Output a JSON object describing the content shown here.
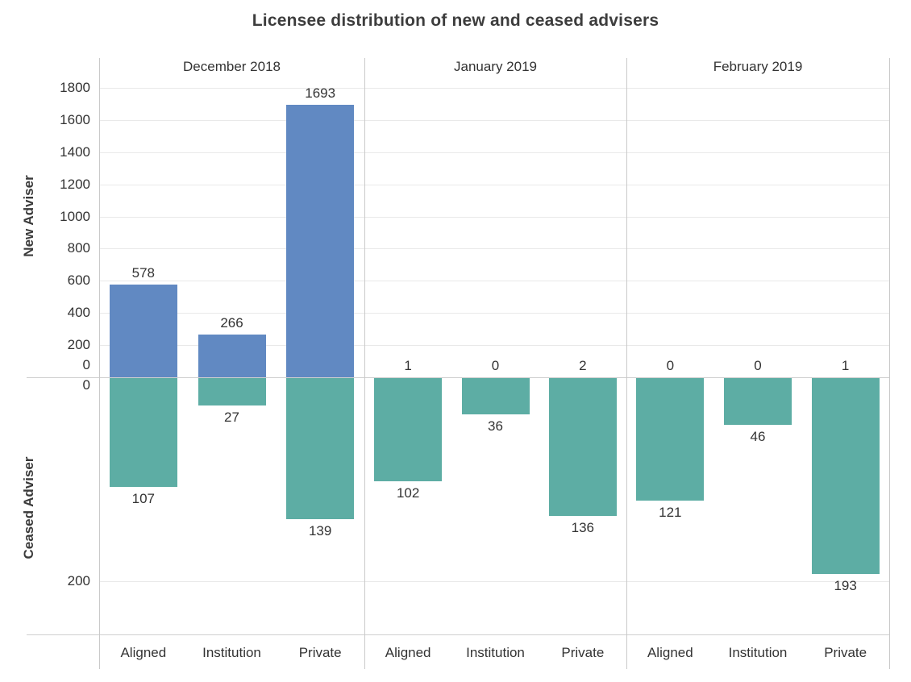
{
  "chart_data": {
    "type": "bar",
    "title": "Licensee distribution of new and ceased advisers",
    "categories": [
      "Aligned",
      "Institution",
      "Private"
    ],
    "facets": [
      {
        "label": "December 2018",
        "new": [
          578,
          266,
          1693
        ],
        "ceased": [
          107,
          27,
          139
        ]
      },
      {
        "label": "January 2019",
        "new": [
          1,
          0,
          2
        ],
        "ceased": [
          102,
          36,
          136
        ]
      },
      {
        "label": "February 2019",
        "new": [
          0,
          0,
          1
        ],
        "ceased": [
          121,
          46,
          193
        ]
      }
    ],
    "axes": {
      "new": {
        "label": "New Adviser",
        "ticks": [
          0,
          200,
          400,
          600,
          800,
          1000,
          1200,
          1400,
          1600,
          1800
        ],
        "range": [
          0,
          1800
        ],
        "bar_color": "#6189c2"
      },
      "ceased": {
        "label": "Ceased Adviser",
        "ticks": [
          0,
          200
        ],
        "range": [
          0,
          253
        ],
        "bar_color": "#5dada4"
      }
    },
    "legend": null,
    "grid": true,
    "gridline_color": "#e9e9e9",
    "divider_color": "#c9c9c9",
    "label_color": "#333333",
    "title_color": "#3d3d3d"
  }
}
